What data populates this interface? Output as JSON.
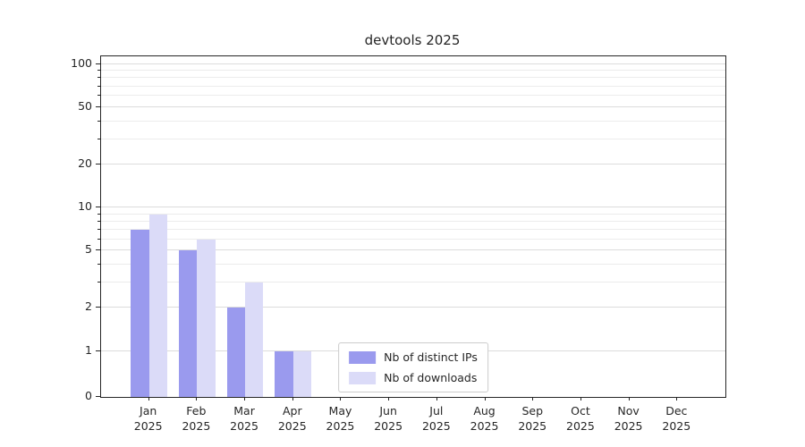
{
  "chart_data": {
    "type": "bar",
    "title": "devtools 2025",
    "categories": [
      "Jan",
      "Feb",
      "Mar",
      "Apr",
      "May",
      "Jun",
      "Jul",
      "Aug",
      "Sep",
      "Oct",
      "Nov",
      "Dec"
    ],
    "year": "2025",
    "series": [
      {
        "name": "Nb of distinct IPs",
        "color": "#9a9aee",
        "values": [
          7,
          5,
          2,
          1,
          0,
          0,
          0,
          0,
          0,
          0,
          0,
          0
        ]
      },
      {
        "name": "Nb of downloads",
        "color": "#dbdbf8",
        "values": [
          9,
          6,
          3,
          1,
          0,
          0,
          0,
          0,
          0,
          0,
          0,
          0
        ]
      }
    ],
    "xlabel": "",
    "ylabel": "",
    "yscale": "log-with-zero-baseline",
    "ylim": [
      0,
      100
    ],
    "yticks": [
      0,
      1,
      2,
      5,
      10,
      20,
      50,
      100
    ],
    "minor_yticks": [
      3,
      4,
      6,
      7,
      8,
      9,
      30,
      40,
      60,
      70,
      80,
      90
    ],
    "grid": true,
    "legend_position": "lower center",
    "colors": {
      "grid_major": "#dcdcdc",
      "grid_minor": "#ececec",
      "axis": "#262626",
      "background": "#ffffff"
    }
  }
}
